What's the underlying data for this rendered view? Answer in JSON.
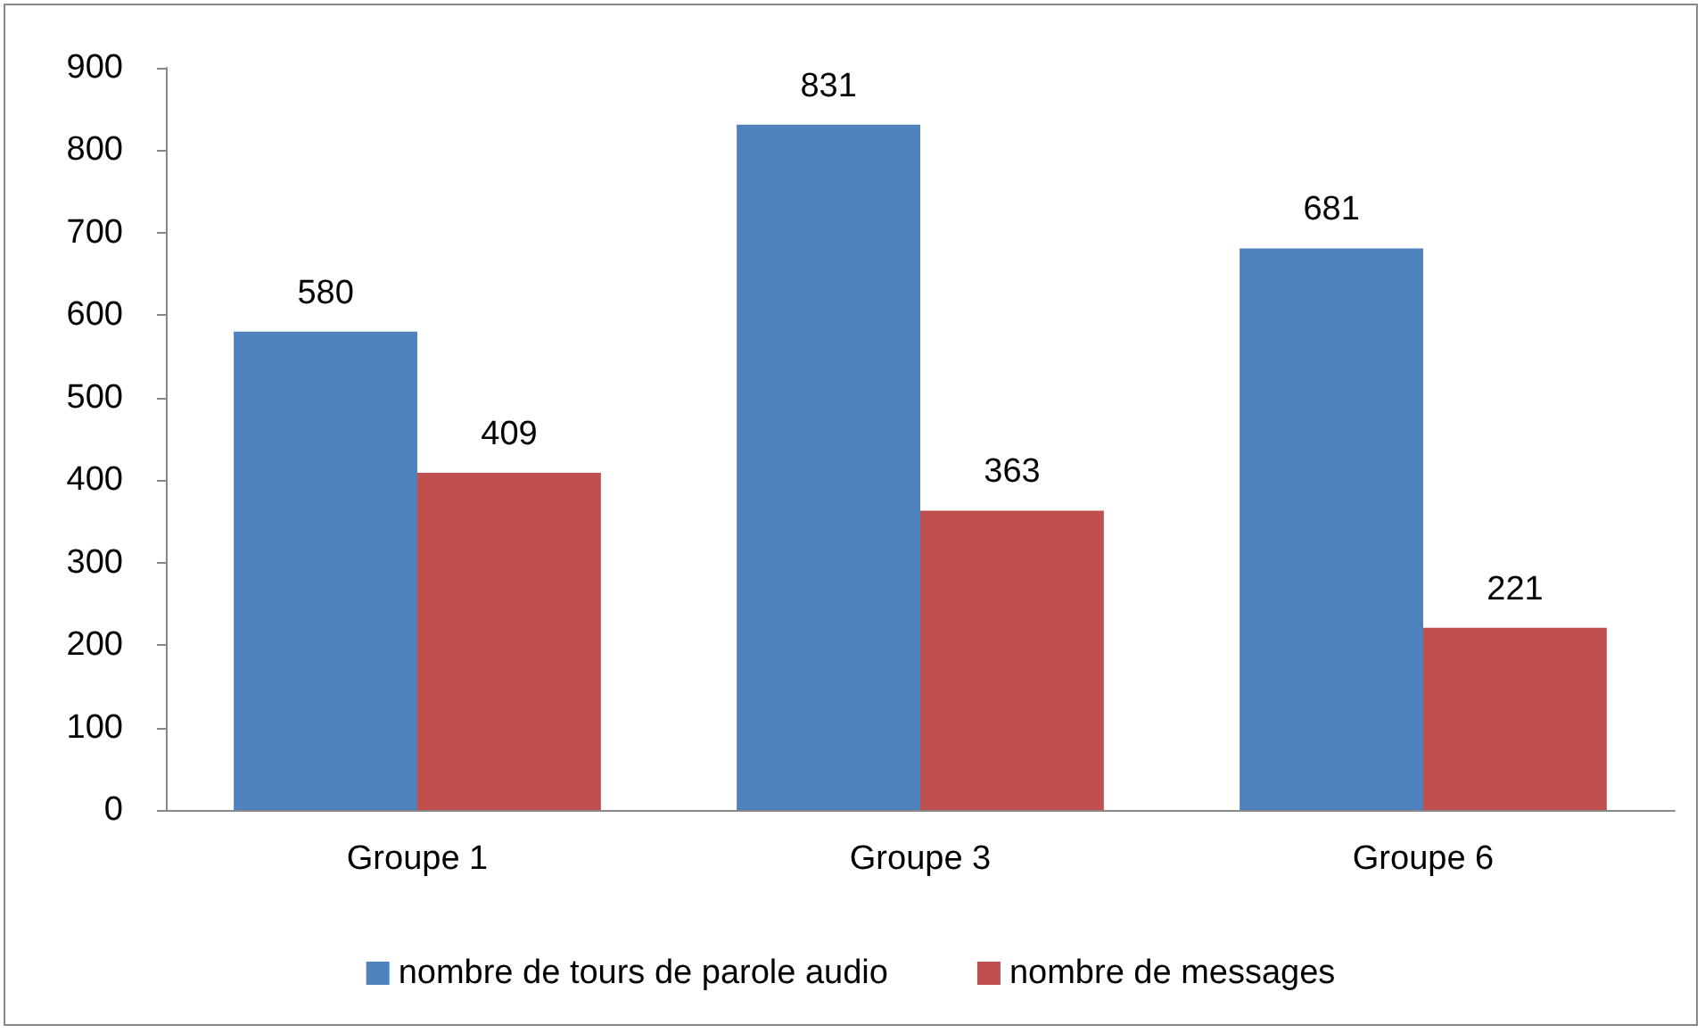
{
  "chart_data": {
    "type": "bar",
    "categories": [
      "Groupe 1",
      "Groupe 3",
      "Groupe 6"
    ],
    "series": [
      {
        "name": "nombre de tours de parole audio",
        "color": "#4f81bd",
        "values": [
          580,
          831,
          681
        ]
      },
      {
        "name": "nombre de messages",
        "color": "#c0504d",
        "values": [
          409,
          363,
          221
        ]
      }
    ],
    "ylim": [
      0,
      900
    ],
    "yticks": [
      0,
      100,
      200,
      300,
      400,
      500,
      600,
      700,
      800,
      900
    ],
    "grid": false,
    "legend": "bottom",
    "data_labels": true
  }
}
